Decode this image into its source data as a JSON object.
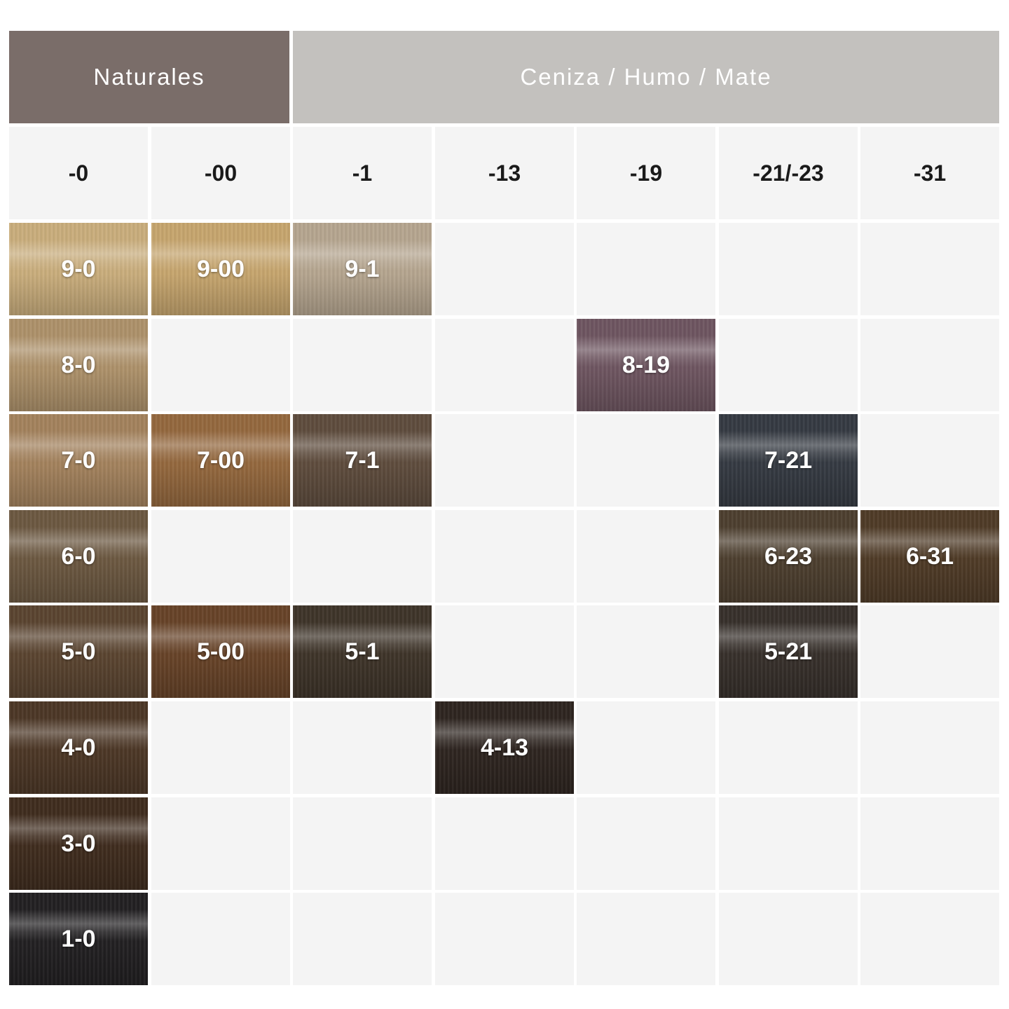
{
  "groups": {
    "naturales": "Naturales",
    "ceniza": "Ceniza / Humo / Mate"
  },
  "columns": [
    "-0",
    "-00",
    "-1",
    "-13",
    "-19",
    "-21/-23",
    "-31"
  ],
  "rows": 8,
  "swatches": [
    {
      "label": "9-0",
      "row": 0,
      "col": 0,
      "color": "#c9ad7c"
    },
    {
      "label": "9-00",
      "row": 0,
      "col": 1,
      "color": "#c6a56e"
    },
    {
      "label": "9-1",
      "row": 0,
      "col": 2,
      "color": "#b5a58f"
    },
    {
      "label": "8-0",
      "row": 1,
      "col": 0,
      "color": "#ad916a"
    },
    {
      "label": "8-19",
      "row": 1,
      "col": 4,
      "color": "#6e5560"
    },
    {
      "label": "7-0",
      "row": 2,
      "col": 0,
      "color": "#a3825d"
    },
    {
      "label": "7-00",
      "row": 2,
      "col": 1,
      "color": "#94683e"
    },
    {
      "label": "7-1",
      "row": 2,
      "col": 2,
      "color": "#5e4c3d"
    },
    {
      "label": "7-21",
      "row": 2,
      "col": 5,
      "color": "#353a42"
    },
    {
      "label": "6-0",
      "row": 3,
      "col": 0,
      "color": "#6c5841"
    },
    {
      "label": "6-23",
      "row": 3,
      "col": 5,
      "color": "#4d3f2f"
    },
    {
      "label": "6-31",
      "row": 3,
      "col": 6,
      "color": "#4f3b27"
    },
    {
      "label": "5-0",
      "row": 4,
      "col": 0,
      "color": "#5a4430"
    },
    {
      "label": "5-00",
      "row": 4,
      "col": 1,
      "color": "#674328"
    },
    {
      "label": "5-1",
      "row": 4,
      "col": 2,
      "color": "#3e3429"
    },
    {
      "label": "5-21",
      "row": 4,
      "col": 5,
      "color": "#37302b"
    },
    {
      "label": "4-13",
      "row": 5,
      "col": 3,
      "color": "#2e2520"
    },
    {
      "label": "4-0",
      "row": 5,
      "col": 0,
      "color": "#4c3726"
    },
    {
      "label": "3-0",
      "row": 6,
      "col": 0,
      "color": "#3f2c1e"
    },
    {
      "label": "1-0",
      "row": 7,
      "col": 0,
      "color": "#222022"
    }
  ]
}
